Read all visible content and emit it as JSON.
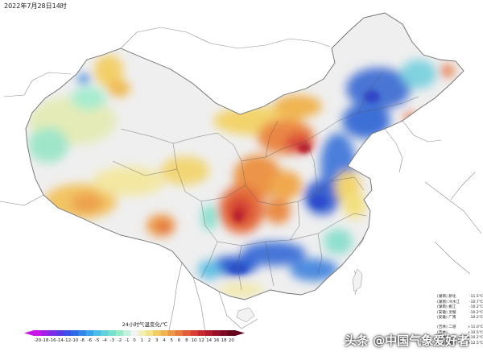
{
  "timestamp": "2022年7月28日14时",
  "legend": {
    "title": "24小时气温变化/℃",
    "ticks": [
      "-20",
      "-18",
      "-16",
      "-14",
      "-12",
      "-10",
      "-8",
      "-6",
      "-5",
      "-4",
      "-3",
      "-2",
      "-1",
      "0",
      "1",
      "2",
      "3",
      "4",
      "5",
      "6",
      "8",
      "10",
      "12",
      "14",
      "16",
      "18",
      "20"
    ],
    "colors": [
      "#c916e8",
      "#a21fe8",
      "#7d2ce8",
      "#5a3ae6",
      "#3d4fe6",
      "#2d6ae8",
      "#3186ea",
      "#3ba3ec",
      "#4bbde8",
      "#5fd2dc",
      "#77e0cf",
      "#98eac8",
      "#c6f0e0",
      "#f2f2f2",
      "#f4efb8",
      "#f3e38a",
      "#f2cd66",
      "#f0b34f",
      "#ec9747",
      "#e77a40",
      "#e25c39",
      "#d93f33",
      "#c8292e",
      "#b11c2c",
      "#961226",
      "#7c0a22",
      "#63051c"
    ]
  },
  "stats_top": [
    {
      "region": "(湖南)",
      "station": "新化",
      "value": "-11.5℃"
    },
    {
      "region": "(湖南)",
      "station": "冷水江",
      "value": "-10.7℃"
    },
    {
      "region": "(湖南)",
      "station": "桃江",
      "value": "-10.2℃"
    },
    {
      "region": "(安徽)",
      "station": "灵璧",
      "value": "-10.2℃"
    },
    {
      "region": "(安徽)",
      "station": "广南",
      "value": "-10.2℃"
    }
  ],
  "stats_bottom": [
    {
      "region": "(吉林)",
      "station": "二道",
      "value": "+11.0℃"
    },
    {
      "region": "(吉林)",
      "station": "",
      "value": "+10.5℃"
    },
    {
      "region": "(吉林)",
      "station": "",
      "value": "+10.2℃"
    },
    {
      "region": "(四川)",
      "station": "峨边",
      "value": "+12.5℃"
    }
  ],
  "watermark": "头条 @中国气象爱好者"
}
